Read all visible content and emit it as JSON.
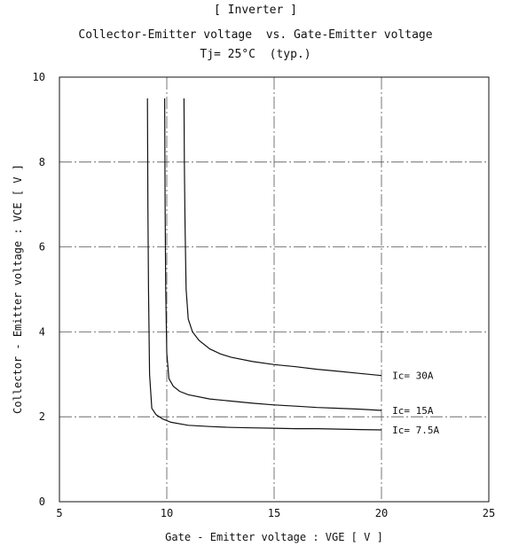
{
  "chart_data": {
    "type": "line",
    "title": "[ Inverter ]",
    "subtitle": "Collector-Emitter voltage  vs. Gate-Emitter voltage",
    "condition": "Tj= 25°C  (typ.)",
    "xlabel": "Gate - Emitter voltage :  VGE  [ V ]",
    "ylabel": "Collector - Emitter voltage :  VCE  [ V ]",
    "xlim": [
      5,
      25
    ],
    "ylim": [
      0,
      10
    ],
    "xticks": [
      "5",
      "10",
      "15",
      "20",
      "25"
    ],
    "yticks": [
      "0",
      "2",
      "4",
      "6",
      "8",
      "10"
    ],
    "grid": true,
    "series": [
      {
        "name": "Ic= 30A",
        "x": [
          10.8,
          10.82,
          10.85,
          10.9,
          11.0,
          11.2,
          11.5,
          12.0,
          12.5,
          13.0,
          14.0,
          15.0,
          16.0,
          17.0,
          18.0,
          19.0,
          20.0
        ],
        "y": [
          9.5,
          8.0,
          6.5,
          5.0,
          4.3,
          4.0,
          3.8,
          3.6,
          3.48,
          3.4,
          3.3,
          3.23,
          3.18,
          3.12,
          3.07,
          3.02,
          2.97
        ]
      },
      {
        "name": "Ic= 15A",
        "x": [
          9.9,
          9.92,
          9.95,
          10.0,
          10.1,
          10.3,
          10.6,
          11.0,
          12.0,
          13.0,
          14.0,
          15.0,
          16.0,
          17.0,
          18.0,
          19.0,
          20.0
        ],
        "y": [
          9.5,
          7.0,
          5.0,
          3.5,
          2.9,
          2.72,
          2.6,
          2.52,
          2.42,
          2.37,
          2.32,
          2.28,
          2.25,
          2.22,
          2.2,
          2.18,
          2.15
        ]
      },
      {
        "name": "Ic= 7.5A",
        "x": [
          9.1,
          9.12,
          9.15,
          9.2,
          9.3,
          9.5,
          9.8,
          10.2,
          11.0,
          12.0,
          13.0,
          14.0,
          15.0,
          16.0,
          17.0,
          18.0,
          19.0,
          20.0
        ],
        "y": [
          9.5,
          7.0,
          5.0,
          3.0,
          2.2,
          2.05,
          1.95,
          1.87,
          1.8,
          1.77,
          1.75,
          1.74,
          1.73,
          1.72,
          1.72,
          1.71,
          1.7,
          1.69
        ]
      }
    ]
  }
}
